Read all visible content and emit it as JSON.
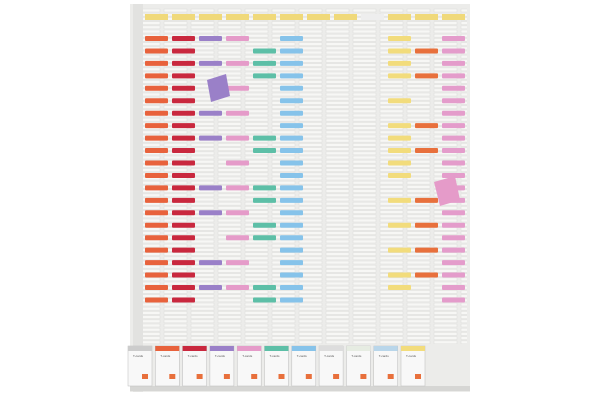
{
  "board": {
    "columns": [
      {
        "color": "#e8623c",
        "header": "#f0d97a",
        "cards": [
          0,
          1,
          2,
          3,
          4,
          5,
          6,
          7,
          8,
          9,
          10,
          11,
          12,
          13,
          14,
          15,
          16,
          17,
          18,
          19,
          20,
          21
        ]
      },
      {
        "color": "#c9283e",
        "header": "#f0d97a",
        "cards": [
          0,
          1,
          2,
          3,
          4,
          5,
          6,
          7,
          8,
          9,
          10,
          11,
          12,
          13,
          14,
          15,
          16,
          17,
          18,
          19,
          20,
          21
        ]
      },
      {
        "color": "#9a80c8",
        "header": "#f0d97a",
        "cards": [
          0,
          2,
          6,
          8,
          12,
          14,
          18,
          20
        ]
      },
      {
        "color": "#e59bc9",
        "header": "#f0d97a",
        "cards": [
          0,
          2,
          4,
          6,
          8,
          10,
          12,
          14,
          16,
          18,
          20
        ]
      },
      {
        "color": "#5dbfa7",
        "header": "#f0d97a",
        "cards": [
          1,
          2,
          3,
          8,
          9,
          12,
          13,
          15,
          16,
          20,
          21
        ]
      },
      {
        "color": "#86c3ea",
        "header": "#f0d97a",
        "cards": [
          0,
          1,
          2,
          3,
          4,
          5,
          6,
          7,
          8,
          9,
          10,
          11,
          12,
          13,
          14,
          15,
          16,
          17,
          18,
          19,
          20,
          21
        ]
      },
      {
        "color": "#f4f4f2",
        "header": "#f0d97a",
        "cards": []
      },
      {
        "color": "#e6ece2",
        "header": "#f0d97a",
        "cards": []
      },
      {
        "color": "#f2f2f2",
        "header": "#eeeeee",
        "cards": []
      },
      {
        "color": "#f2dc7c",
        "header": "#f0d97a",
        "cards": [
          0,
          1,
          2,
          3,
          5,
          7,
          8,
          9,
          10,
          11,
          13,
          15,
          17,
          19,
          20
        ]
      },
      {
        "color": "#e8703c",
        "header": "#f0d97a",
        "cards": [
          1,
          3,
          7,
          9,
          13,
          15,
          17,
          19
        ]
      },
      {
        "color": "#e49ccb",
        "header": "#f0d97a",
        "cards": [
          0,
          1,
          2,
          3,
          4,
          5,
          6,
          7,
          8,
          9,
          10,
          11,
          12,
          13,
          14,
          15,
          16,
          17,
          18,
          19,
          20,
          21
        ]
      }
    ],
    "boxes": [
      {
        "color": "#cccccc",
        "label": "T-cards"
      },
      {
        "color": "#e8623c",
        "label": "T-cards"
      },
      {
        "color": "#c9283e",
        "label": "T-cards"
      },
      {
        "color": "#9a80c8",
        "label": "T-cards"
      },
      {
        "color": "#e59bc9",
        "label": "T-cards"
      },
      {
        "color": "#5dbfa7",
        "label": "T-cards"
      },
      {
        "color": "#86c3ea",
        "label": "T-cards"
      },
      {
        "color": "#dddddd",
        "label": "T-cards"
      },
      {
        "color": "#e6ece2",
        "label": "T-cards"
      },
      {
        "color": "#b9d6ea",
        "label": "T-cards"
      },
      {
        "color": "#f2dc7c",
        "label": "T-cards"
      }
    ]
  }
}
